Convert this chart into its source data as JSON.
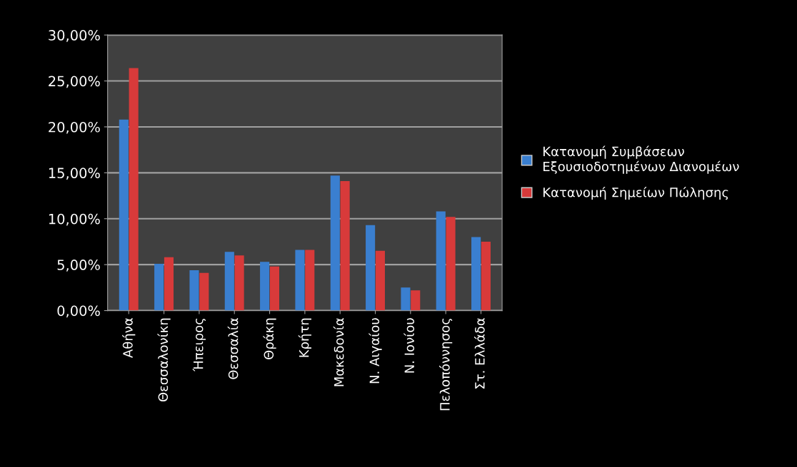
{
  "chart_data": {
    "type": "bar",
    "categories": [
      "Αθήνα",
      "Θεσσαλονίκη",
      "Ήπειρος",
      "Θεσσαλία",
      "Θράκη",
      "Κρήτη",
      "Μακεδονία",
      "Ν. Αιγαίου",
      "Ν. Ιονίου",
      "Πελοπόννησος",
      "Στ. Ελλάδα"
    ],
    "series": [
      {
        "name": "Κατανομή Συμβάσεων Εξουσιοδοτημένων Διανομέων",
        "color": "#3a7fd0",
        "values": [
          20.8,
          5.1,
          4.4,
          6.4,
          5.3,
          6.6,
          14.7,
          9.3,
          2.5,
          10.8,
          8.0
        ]
      },
      {
        "name": "Κατανομή Σημείων Πώλησης",
        "color": "#d83a3a",
        "values": [
          26.4,
          5.8,
          4.1,
          6.0,
          4.8,
          6.6,
          14.1,
          6.5,
          2.2,
          10.2,
          7.5
        ]
      }
    ],
    "ylim": [
      0,
      30
    ],
    "yticks": [
      {
        "value": 0,
        "label": "0,00%"
      },
      {
        "value": 5,
        "label": "5,00%"
      },
      {
        "value": 10,
        "label": "10,00%"
      },
      {
        "value": 15,
        "label": "15,00%"
      },
      {
        "value": 20,
        "label": "20,00%"
      },
      {
        "value": 25,
        "label": "25,00%"
      },
      {
        "value": 30,
        "label": "30,00%"
      }
    ],
    "grid": "y",
    "legend": "right"
  }
}
